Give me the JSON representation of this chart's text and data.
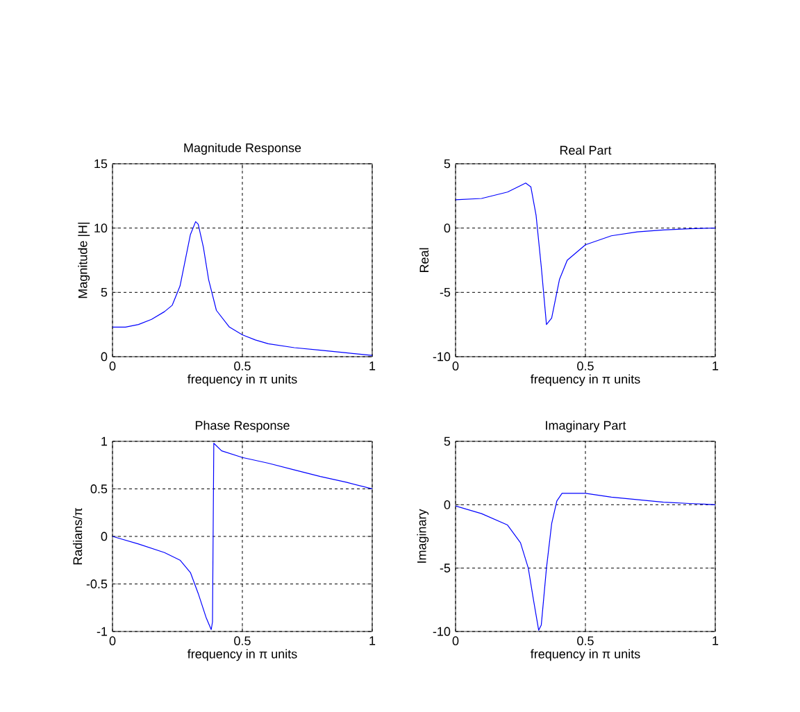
{
  "chart_data": [
    {
      "type": "line",
      "title": "Magnitude Response",
      "xlabel": "frequency in π units",
      "ylabel": "Magnitude  |H|",
      "grid": true,
      "xlim": [
        0,
        1
      ],
      "ylim": [
        0,
        15
      ],
      "xticks": [
        0,
        0.5,
        1
      ],
      "yticks": [
        0,
        5,
        10,
        15
      ],
      "x": [
        0,
        0.05,
        0.1,
        0.15,
        0.2,
        0.23,
        0.26,
        0.28,
        0.3,
        0.32,
        0.33,
        0.35,
        0.37,
        0.4,
        0.45,
        0.5,
        0.55,
        0.6,
        0.7,
        0.8,
        0.9,
        1
      ],
      "series": [
        {
          "color": "#0000ff",
          "values": [
            2.3,
            2.3,
            2.5,
            2.9,
            3.5,
            4.0,
            5.5,
            7.5,
            9.5,
            10.5,
            10.3,
            8.5,
            6,
            3.6,
            2.3,
            1.7,
            1.3,
            1.0,
            0.7,
            0.5,
            0.3,
            0.1
          ]
        }
      ]
    },
    {
      "type": "line",
      "title": "Real Part",
      "xlabel": "frequency in π units",
      "ylabel": "Real",
      "grid": true,
      "xlim": [
        0,
        1
      ],
      "ylim": [
        -10,
        5
      ],
      "xticks": [
        0,
        0.5,
        1
      ],
      "yticks": [
        -10,
        -5,
        0,
        5
      ],
      "x": [
        0,
        0.1,
        0.2,
        0.25,
        0.27,
        0.29,
        0.31,
        0.33,
        0.35,
        0.37,
        0.4,
        0.43,
        0.5,
        0.6,
        0.7,
        0.8,
        0.9,
        1
      ],
      "series": [
        {
          "color": "#0000ff",
          "values": [
            2.2,
            2.3,
            2.8,
            3.3,
            3.5,
            3.2,
            1.0,
            -3,
            -7.5,
            -7,
            -4,
            -2.5,
            -1.3,
            -0.6,
            -0.3,
            -0.15,
            -0.05,
            0
          ]
        }
      ]
    },
    {
      "type": "line",
      "title": "Phase Response",
      "xlabel": "frequency in π units",
      "ylabel": "Radians/π",
      "grid": true,
      "xlim": [
        0,
        1
      ],
      "ylim": [
        -1,
        1
      ],
      "xticks": [
        0,
        0.5,
        1
      ],
      "yticks": [
        -1,
        -0.5,
        0,
        0.5,
        1
      ],
      "x": [
        0,
        0.1,
        0.2,
        0.26,
        0.3,
        0.33,
        0.36,
        0.38,
        0.385,
        0.39,
        0.42,
        0.5,
        0.6,
        0.7,
        0.8,
        0.9,
        1
      ],
      "series": [
        {
          "color": "#0000ff",
          "values": [
            0,
            -0.08,
            -0.17,
            -0.25,
            -0.38,
            -0.6,
            -0.85,
            -0.98,
            -0.9,
            0.98,
            0.9,
            0.83,
            0.77,
            0.7,
            0.63,
            0.57,
            0.5
          ]
        }
      ]
    },
    {
      "type": "line",
      "title": "Imaginary Part",
      "xlabel": "frequency in π units",
      "ylabel": "Imaginary",
      "grid": true,
      "xlim": [
        0,
        1
      ],
      "ylim": [
        -10,
        5
      ],
      "xticks": [
        0,
        0.5,
        1
      ],
      "yticks": [
        -10,
        -5,
        0,
        5
      ],
      "x": [
        0,
        0.1,
        0.2,
        0.25,
        0.28,
        0.3,
        0.32,
        0.33,
        0.35,
        0.37,
        0.39,
        0.41,
        0.5,
        0.6,
        0.7,
        0.8,
        0.9,
        1
      ],
      "series": [
        {
          "color": "#0000ff",
          "values": [
            -0.1,
            -0.7,
            -1.6,
            -3,
            -5,
            -7.5,
            -9.9,
            -9.5,
            -5,
            -1.5,
            0.3,
            0.9,
            0.9,
            0.6,
            0.4,
            0.2,
            0.1,
            0
          ]
        }
      ]
    }
  ]
}
